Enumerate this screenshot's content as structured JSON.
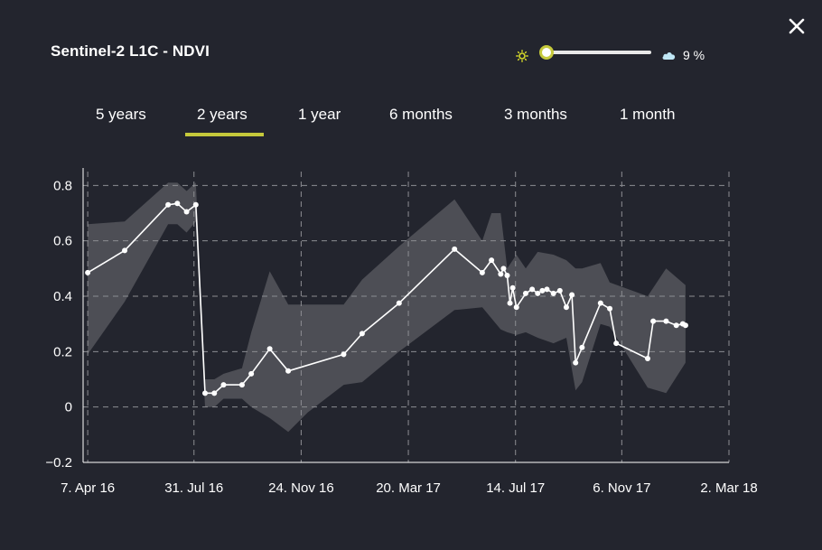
{
  "title": "Sentinel-2 L1C - NDVI",
  "close_icon": "close-icon",
  "cloud_filter": {
    "sun_icon": "sun-icon",
    "cloud_icon": "cloud-icon",
    "value_label": "9 %",
    "level": 0.05
  },
  "tabs": [
    {
      "label": "5 years"
    },
    {
      "label": "2 years"
    },
    {
      "label": "1 year"
    },
    {
      "label": "6 months"
    },
    {
      "label": "3 months"
    },
    {
      "label": "1 month"
    }
  ],
  "active_tab": "2 years",
  "colors": {
    "background": "#23252e",
    "accent": "#c5c93b",
    "band": "#55565c",
    "line": "#ffffff"
  },
  "chart_data": {
    "type": "line",
    "title": "",
    "xlabel": "",
    "ylabel": "",
    "xlim": [
      "2016-04-02",
      "2018-03-02"
    ],
    "ylim": [
      -0.2,
      0.85
    ],
    "grid": true,
    "y_ticks": [
      "0.8",
      "0.6",
      "0.4",
      "0.2",
      "0",
      "−0.2"
    ],
    "y_tick_values": [
      0.8,
      0.6,
      0.4,
      0.2,
      0,
      -0.2
    ],
    "x_ticks": [
      "7. Apr 16",
      "31. Jul 16",
      "24. Nov 16",
      "20. Mar 17",
      "14. Jul 17",
      "6. Nov 17",
      "2. Mar 18"
    ],
    "x_tick_dates": [
      "2016-04-07",
      "2016-07-31",
      "2016-11-24",
      "2017-03-20",
      "2017-07-14",
      "2017-11-06",
      "2018-03-02"
    ],
    "series": [
      {
        "x": [
          "2016-04-07",
          "2016-05-17",
          "2016-07-03",
          "2016-07-13",
          "2016-07-23",
          "2016-08-02",
          "2016-08-12",
          "2016-08-22",
          "2016-09-01",
          "2016-09-21",
          "2016-10-01",
          "2016-10-21",
          "2016-11-10",
          "2017-01-09",
          "2017-01-29",
          "2017-03-10",
          "2017-05-09",
          "2017-06-08",
          "2017-06-18",
          "2017-06-28",
          "2017-07-01",
          "2017-07-05",
          "2017-07-08",
          "2017-07-11",
          "2017-07-15",
          "2017-07-25",
          "2017-08-01",
          "2017-08-07",
          "2017-08-12",
          "2017-08-17",
          "2017-08-24",
          "2017-08-31",
          "2017-09-07",
          "2017-09-13",
          "2017-09-17",
          "2017-09-24",
          "2017-10-14",
          "2017-10-24",
          "2017-10-31",
          "2017-12-04",
          "2017-12-10",
          "2017-12-24",
          "2018-01-04",
          "2018-01-11",
          "2018-01-14"
        ],
        "values": [
          0.485,
          0.565,
          0.73,
          0.735,
          0.705,
          0.73,
          0.05,
          0.05,
          0.08,
          0.08,
          0.12,
          0.21,
          0.13,
          0.19,
          0.265,
          0.375,
          0.57,
          0.485,
          0.53,
          0.48,
          0.5,
          0.475,
          0.375,
          0.43,
          0.36,
          0.41,
          0.425,
          0.41,
          0.42,
          0.425,
          0.41,
          0.42,
          0.36,
          0.405,
          0.16,
          0.215,
          0.375,
          0.355,
          0.23,
          0.175,
          0.31,
          0.31,
          0.295,
          0.3,
          0.295
        ]
      }
    ],
    "band": {
      "x": [
        "2016-04-07",
        "2016-05-17",
        "2016-07-03",
        "2016-07-13",
        "2016-07-23",
        "2016-08-02",
        "2016-08-12",
        "2016-08-22",
        "2016-09-01",
        "2016-09-21",
        "2016-10-01",
        "2016-10-21",
        "2016-11-10",
        "2016-12-01",
        "2017-01-09",
        "2017-01-29",
        "2017-03-10",
        "2017-05-09",
        "2017-06-08",
        "2017-06-18",
        "2017-06-28",
        "2017-07-05",
        "2017-07-15",
        "2017-07-25",
        "2017-08-07",
        "2017-08-24",
        "2017-09-07",
        "2017-09-17",
        "2017-09-24",
        "2017-10-14",
        "2017-10-24",
        "2017-12-04",
        "2017-12-24",
        "2018-01-14"
      ],
      "upper": [
        0.66,
        0.67,
        0.81,
        0.81,
        0.78,
        0.81,
        0.1,
        0.1,
        0.12,
        0.14,
        0.27,
        0.49,
        0.37,
        0.37,
        0.37,
        0.46,
        0.58,
        0.75,
        0.6,
        0.7,
        0.7,
        0.5,
        0.55,
        0.5,
        0.56,
        0.55,
        0.53,
        0.5,
        0.5,
        0.52,
        0.45,
        0.4,
        0.5,
        0.44
      ],
      "lower": [
        0.19,
        0.38,
        0.66,
        0.66,
        0.63,
        0.67,
        0.0,
        0.0,
        0.03,
        0.03,
        0.0,
        -0.04,
        -0.09,
        -0.02,
        0.08,
        0.09,
        0.2,
        0.35,
        0.36,
        0.32,
        0.28,
        0.27,
        0.26,
        0.27,
        0.25,
        0.23,
        0.25,
        0.06,
        0.09,
        0.3,
        0.29,
        0.07,
        0.05,
        0.16
      ]
    }
  }
}
